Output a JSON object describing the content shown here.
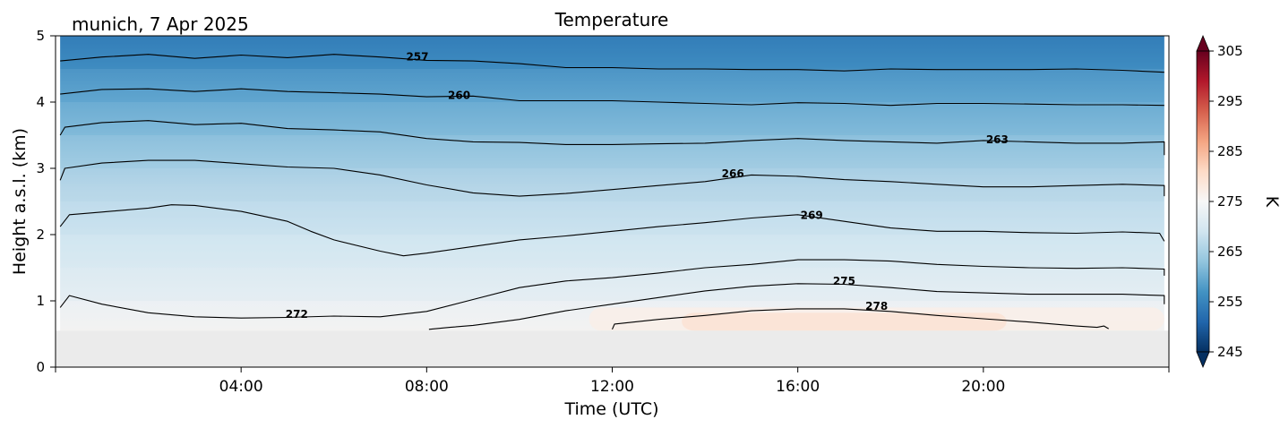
{
  "chart_data": {
    "type": "heatmap",
    "title": "Temperature",
    "subtitle": "munich, 7 Apr 2025",
    "xlabel": "Time (UTC)",
    "ylabel": "Height a.s.l. (km)",
    "xlim": [
      0,
      24
    ],
    "ylim": [
      0,
      5
    ],
    "x_ticks": [
      {
        "value": 4,
        "label": "04:00"
      },
      {
        "value": 8,
        "label": "08:00"
      },
      {
        "value": 12,
        "label": "12:00"
      },
      {
        "value": 16,
        "label": "16:00"
      },
      {
        "value": 20,
        "label": "20:00"
      }
    ],
    "y_ticks": [
      {
        "value": 0,
        "label": "0"
      },
      {
        "value": 1,
        "label": "1"
      },
      {
        "value": 2,
        "label": "2"
      },
      {
        "value": 3,
        "label": "3"
      },
      {
        "value": 4,
        "label": "4"
      },
      {
        "value": 5,
        "label": "5"
      }
    ],
    "no_data_below_km": 0.55,
    "no_data_color": "#ebebeb",
    "colorbar": {
      "label": "K",
      "colormap": "RdBu_r",
      "range": [
        245,
        305
      ],
      "ticks": [
        245,
        255,
        265,
        275,
        285,
        295,
        305
      ],
      "extend": "both"
    },
    "contour_levels": [
      {
        "label": "257",
        "label_at": [
          7.8,
          4.68
        ],
        "points": [
          [
            0.1,
            4.62
          ],
          [
            1,
            4.68
          ],
          [
            2,
            4.72
          ],
          [
            3,
            4.66
          ],
          [
            4,
            4.71
          ],
          [
            5,
            4.67
          ],
          [
            6,
            4.72
          ],
          [
            7,
            4.68
          ],
          [
            8,
            4.63
          ],
          [
            9,
            4.62
          ],
          [
            10,
            4.58
          ],
          [
            11,
            4.52
          ],
          [
            12,
            4.52
          ],
          [
            13,
            4.5
          ],
          [
            14,
            4.5
          ],
          [
            15,
            4.49
          ],
          [
            16,
            4.49
          ],
          [
            17,
            4.47
          ],
          [
            18,
            4.5
          ],
          [
            19,
            4.49
          ],
          [
            20,
            4.49
          ],
          [
            21,
            4.49
          ],
          [
            22,
            4.5
          ],
          [
            23,
            4.48
          ],
          [
            23.9,
            4.45
          ]
        ]
      },
      {
        "label": "260",
        "label_at": [
          8.7,
          4.1
        ],
        "points": [
          [
            0.1,
            4.12
          ],
          [
            1,
            4.19
          ],
          [
            2,
            4.2
          ],
          [
            3,
            4.16
          ],
          [
            4,
            4.2
          ],
          [
            5,
            4.16
          ],
          [
            6,
            4.14
          ],
          [
            7,
            4.12
          ],
          [
            8,
            4.08
          ],
          [
            9,
            4.09
          ],
          [
            10,
            4.02
          ],
          [
            11,
            4.02
          ],
          [
            12,
            4.02
          ],
          [
            13,
            4.0
          ],
          [
            14,
            3.98
          ],
          [
            15,
            3.96
          ],
          [
            16,
            3.99
          ],
          [
            17,
            3.98
          ],
          [
            18,
            3.95
          ],
          [
            19,
            3.98
          ],
          [
            20,
            3.98
          ],
          [
            21,
            3.97
          ],
          [
            22,
            3.96
          ],
          [
            23,
            3.96
          ],
          [
            23.9,
            3.95
          ]
        ]
      },
      {
        "label": "263",
        "label_at": [
          20.3,
          3.43
        ],
        "points": [
          [
            0.1,
            3.5
          ],
          [
            0.2,
            3.62
          ],
          [
            1,
            3.69
          ],
          [
            2,
            3.72
          ],
          [
            3,
            3.66
          ],
          [
            4,
            3.68
          ],
          [
            5,
            3.6
          ],
          [
            6,
            3.58
          ],
          [
            7,
            3.55
          ],
          [
            8,
            3.45
          ],
          [
            9,
            3.4
          ],
          [
            10,
            3.39
          ],
          [
            11,
            3.36
          ],
          [
            12,
            3.36
          ],
          [
            13,
            3.37
          ],
          [
            14,
            3.38
          ],
          [
            15,
            3.42
          ],
          [
            16,
            3.45
          ],
          [
            17,
            3.42
          ],
          [
            18,
            3.4
          ],
          [
            19,
            3.38
          ],
          [
            20,
            3.42
          ],
          [
            21,
            3.4
          ],
          [
            22,
            3.38
          ],
          [
            23,
            3.38
          ],
          [
            23.9,
            3.4
          ],
          [
            23.9,
            3.2
          ]
        ]
      },
      {
        "label": "266",
        "label_at": [
          14.6,
          2.92
        ],
        "points": [
          [
            0.1,
            2.82
          ],
          [
            0.2,
            3.0
          ],
          [
            1,
            3.08
          ],
          [
            2,
            3.12
          ],
          [
            3,
            3.12
          ],
          [
            4,
            3.07
          ],
          [
            5,
            3.02
          ],
          [
            6,
            3.0
          ],
          [
            7,
            2.9
          ],
          [
            8,
            2.75
          ],
          [
            9,
            2.63
          ],
          [
            10,
            2.58
          ],
          [
            11,
            2.62
          ],
          [
            12,
            2.68
          ],
          [
            13,
            2.74
          ],
          [
            14,
            2.8
          ],
          [
            15,
            2.9
          ],
          [
            16,
            2.88
          ],
          [
            17,
            2.83
          ],
          [
            18,
            2.8
          ],
          [
            19,
            2.76
          ],
          [
            20,
            2.72
          ],
          [
            21,
            2.72
          ],
          [
            22,
            2.74
          ],
          [
            23,
            2.76
          ],
          [
            23.9,
            2.74
          ],
          [
            23.9,
            2.58
          ]
        ]
      },
      {
        "label": "269",
        "label_at": [
          16.3,
          2.29
        ],
        "points": [
          [
            0.1,
            2.12
          ],
          [
            0.3,
            2.3
          ],
          [
            1,
            2.34
          ],
          [
            2,
            2.4
          ],
          [
            2.5,
            2.45
          ],
          [
            3,
            2.44
          ],
          [
            4,
            2.35
          ],
          [
            5,
            2.2
          ],
          [
            5.5,
            2.05
          ],
          [
            6,
            1.92
          ],
          [
            7,
            1.75
          ],
          [
            7.5,
            1.68
          ],
          [
            8,
            1.72
          ],
          [
            9,
            1.82
          ],
          [
            10,
            1.92
          ],
          [
            11,
            1.98
          ],
          [
            12,
            2.05
          ],
          [
            13,
            2.12
          ],
          [
            14,
            2.18
          ],
          [
            15,
            2.25
          ],
          [
            16,
            2.3
          ],
          [
            17,
            2.2
          ],
          [
            18,
            2.1
          ],
          [
            19,
            2.05
          ],
          [
            20,
            2.05
          ],
          [
            21,
            2.03
          ],
          [
            22,
            2.02
          ],
          [
            23,
            2.04
          ],
          [
            23.8,
            2.02
          ],
          [
            23.9,
            1.9
          ]
        ]
      },
      {
        "label": "272",
        "label_at": [
          5.2,
          0.8
        ],
        "points": [
          [
            0.1,
            0.9
          ],
          [
            0.3,
            1.08
          ],
          [
            1,
            0.95
          ],
          [
            2,
            0.82
          ],
          [
            3,
            0.76
          ],
          [
            4,
            0.74
          ],
          [
            5,
            0.75
          ],
          [
            6,
            0.77
          ],
          [
            7,
            0.76
          ],
          [
            8,
            0.84
          ],
          [
            9,
            1.02
          ],
          [
            10,
            1.2
          ],
          [
            11,
            1.3
          ],
          [
            12,
            1.35
          ],
          [
            13,
            1.42
          ],
          [
            14,
            1.5
          ],
          [
            15,
            1.55
          ],
          [
            16,
            1.62
          ],
          [
            17,
            1.62
          ],
          [
            18,
            1.6
          ],
          [
            19,
            1.55
          ],
          [
            20,
            1.52
          ],
          [
            21,
            1.5
          ],
          [
            22,
            1.49
          ],
          [
            23,
            1.5
          ],
          [
            23.9,
            1.48
          ],
          [
            23.9,
            1.38
          ]
        ]
      },
      {
        "label": "275",
        "label_at": [
          17.0,
          1.3
        ],
        "points": [
          [
            8.05,
            0.57
          ],
          [
            8.5,
            0.6
          ],
          [
            9,
            0.63
          ],
          [
            10,
            0.72
          ],
          [
            11,
            0.85
          ],
          [
            12,
            0.95
          ],
          [
            13,
            1.05
          ],
          [
            14,
            1.15
          ],
          [
            15,
            1.22
          ],
          [
            16,
            1.26
          ],
          [
            17,
            1.25
          ],
          [
            18,
            1.2
          ],
          [
            19,
            1.14
          ],
          [
            20,
            1.12
          ],
          [
            21,
            1.1
          ],
          [
            22,
            1.1
          ],
          [
            23,
            1.1
          ],
          [
            23.9,
            1.08
          ],
          [
            23.9,
            0.95
          ]
        ]
      },
      {
        "label": "278",
        "label_at": [
          17.7,
          0.92
        ],
        "points": [
          [
            12.0,
            0.57
          ],
          [
            12.05,
            0.65
          ],
          [
            13,
            0.72
          ],
          [
            14,
            0.78
          ],
          [
            15,
            0.85
          ],
          [
            16,
            0.88
          ],
          [
            17,
            0.88
          ],
          [
            18,
            0.84
          ],
          [
            19,
            0.78
          ],
          [
            20,
            0.73
          ],
          [
            21,
            0.68
          ],
          [
            22,
            0.62
          ],
          [
            22.45,
            0.6
          ],
          [
            22.6,
            0.62
          ],
          [
            22.7,
            0.58
          ]
        ]
      }
    ],
    "field_bands": [
      {
        "low": 0.55,
        "high": 1.0,
        "value": 274
      },
      {
        "low": 1.0,
        "high": 1.5,
        "value": 271
      },
      {
        "low": 1.5,
        "high": 2.0,
        "value": 269.5
      },
      {
        "low": 2.0,
        "high": 2.5,
        "value": 268
      },
      {
        "low": 2.5,
        "high": 3.0,
        "value": 266.5
      },
      {
        "low": 3.0,
        "high": 3.5,
        "value": 264.5
      },
      {
        "low": 3.5,
        "high": 4.0,
        "value": 262
      },
      {
        "low": 4.0,
        "high": 4.5,
        "value": 259.5
      },
      {
        "low": 4.5,
        "high": 5.0,
        "value": 256.5
      }
    ],
    "warm_core": [
      {
        "x0": 11.5,
        "x1": 23.9,
        "y0": 0.55,
        "y1": 0.9,
        "value": 277
      },
      {
        "x0": 13.5,
        "x1": 20.5,
        "y0": 0.55,
        "y1": 0.82,
        "value": 279.5
      }
    ]
  }
}
